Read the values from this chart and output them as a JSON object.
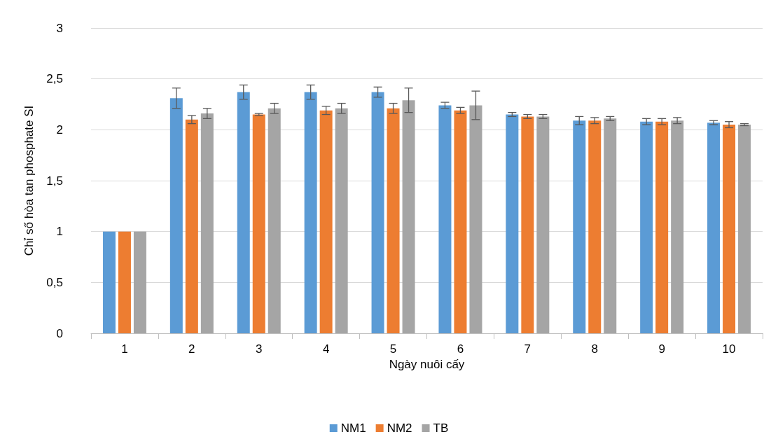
{
  "chart_data": {
    "type": "bar",
    "xlabel": "Ngày nuôi cấy",
    "ylabel": "Chỉ số hòa tan phosphate SI",
    "categories": [
      "1",
      "2",
      "3",
      "4",
      "5",
      "6",
      "7",
      "8",
      "9",
      "10"
    ],
    "series": [
      {
        "name": "NM1",
        "color": "#5b9bd5",
        "values": [
          1,
          2.31,
          2.37,
          2.37,
          2.37,
          2.24,
          2.15,
          2.09,
          2.08,
          2.07
        ],
        "errors": [
          null,
          0.1,
          0.07,
          0.07,
          0.05,
          0.03,
          0.02,
          0.04,
          0.03,
          0.02
        ]
      },
      {
        "name": "NM2",
        "color": "#ed7d31",
        "values": [
          1,
          2.1,
          2.15,
          2.19,
          2.21,
          2.19,
          2.13,
          2.09,
          2.08,
          2.05
        ],
        "errors": [
          null,
          0.04,
          0.01,
          0.04,
          0.05,
          0.03,
          0.02,
          0.03,
          0.03,
          0.03
        ]
      },
      {
        "name": "TB",
        "color": "#a5a5a5",
        "values": [
          1,
          2.16,
          2.21,
          2.21,
          2.29,
          2.24,
          2.13,
          2.11,
          2.09,
          2.05
        ],
        "errors": [
          null,
          0.05,
          0.05,
          0.05,
          0.12,
          0.14,
          0.02,
          0.02,
          0.03,
          0.01
        ]
      }
    ],
    "ylim": [
      0,
      3
    ],
    "yticks": [
      {
        "value": 0,
        "label": "0"
      },
      {
        "value": 0.5,
        "label": "0,5"
      },
      {
        "value": 1,
        "label": "1"
      },
      {
        "value": 1.5,
        "label": "1,5"
      },
      {
        "value": 2,
        "label": "2"
      },
      {
        "value": 2.5,
        "label": "2,5"
      },
      {
        "value": 3,
        "label": "3"
      }
    ],
    "grid": "y",
    "legend": "bottom"
  }
}
